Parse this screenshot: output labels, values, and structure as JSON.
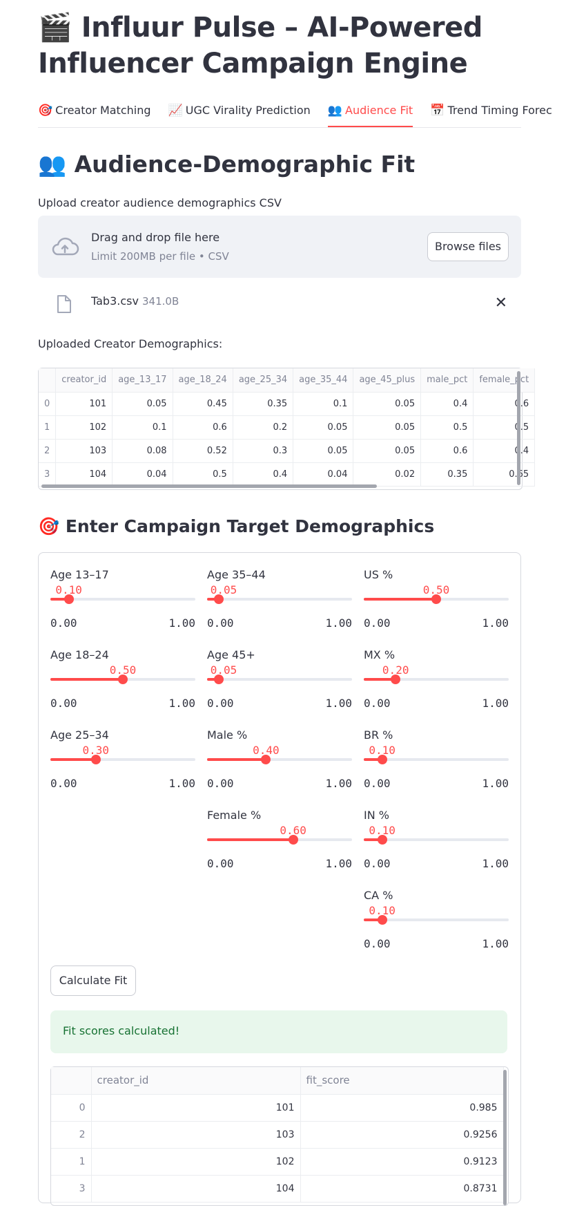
{
  "app": {
    "title": "🎬 Influur Pulse – AI-Powered Influencer Campaign Engine"
  },
  "tabs": [
    {
      "icon": "🎯",
      "label": "Creator Matching",
      "active": false
    },
    {
      "icon": "📈",
      "label": "UGC Virality Prediction",
      "active": false
    },
    {
      "icon": "👥",
      "label": "Audience Fit",
      "active": true
    },
    {
      "icon": "📅",
      "label": "Trend Timing Forec",
      "active": false
    }
  ],
  "audience": {
    "icon": "👥",
    "title": "Audience-Demographic Fit",
    "upload_label": "Upload creator audience demographics CSV",
    "dropzone": {
      "main": "Drag and drop file here",
      "sub": "Limit 200MB per file • CSV",
      "browse_label": "Browse files"
    },
    "file": {
      "name": "Tab3.csv",
      "size": "341.0B"
    },
    "uploaded_label": "Uploaded Creator Demographics:",
    "table": {
      "columns": [
        "",
        "creator_id",
        "age_13_17",
        "age_18_24",
        "age_25_34",
        "age_35_44",
        "age_45_plus",
        "male_pct",
        "female_pct"
      ],
      "rows": [
        [
          "0",
          "101",
          "0.05",
          "0.45",
          "0.35",
          "0.1",
          "0.05",
          "0.4",
          "0.6"
        ],
        [
          "1",
          "102",
          "0.1",
          "0.6",
          "0.2",
          "0.05",
          "0.05",
          "0.5",
          "0.5"
        ],
        [
          "2",
          "103",
          "0.08",
          "0.52",
          "0.3",
          "0.05",
          "0.05",
          "0.6",
          "0.4"
        ],
        [
          "3",
          "104",
          "0.04",
          "0.5",
          "0.4",
          "0.04",
          "0.02",
          "0.35",
          "0.65"
        ]
      ]
    }
  },
  "campaign": {
    "icon": "🎯",
    "title": "Enter Campaign Target Demographics",
    "sliders": {
      "age_13_17": {
        "label": "Age 13–17",
        "value": 0.1,
        "display": "0.10",
        "min": "0.00",
        "max": "1.00"
      },
      "age_18_24": {
        "label": "Age 18–24",
        "value": 0.5,
        "display": "0.50",
        "min": "0.00",
        "max": "1.00"
      },
      "age_25_34": {
        "label": "Age 25–34",
        "value": 0.3,
        "display": "0.30",
        "min": "0.00",
        "max": "1.00"
      },
      "age_35_44": {
        "label": "Age 35–44",
        "value": 0.05,
        "display": "0.05",
        "min": "0.00",
        "max": "1.00"
      },
      "age_45_plus": {
        "label": "Age 45+",
        "value": 0.05,
        "display": "0.05",
        "min": "0.00",
        "max": "1.00"
      },
      "male_pct": {
        "label": "Male %",
        "value": 0.4,
        "display": "0.40",
        "min": "0.00",
        "max": "1.00"
      },
      "female_pct": {
        "label": "Female %",
        "value": 0.6,
        "display": "0.60",
        "min": "0.00",
        "max": "1.00"
      },
      "us_pct": {
        "label": "US %",
        "value": 0.5,
        "display": "0.50",
        "min": "0.00",
        "max": "1.00"
      },
      "mx_pct": {
        "label": "MX %",
        "value": 0.2,
        "display": "0.20",
        "min": "0.00",
        "max": "1.00"
      },
      "br_pct": {
        "label": "BR %",
        "value": 0.1,
        "display": "0.10",
        "min": "0.00",
        "max": "1.00"
      },
      "in_pct": {
        "label": "IN %",
        "value": 0.1,
        "display": "0.10",
        "min": "0.00",
        "max": "1.00"
      },
      "ca_pct": {
        "label": "CA %",
        "value": 0.1,
        "display": "0.10",
        "min": "0.00",
        "max": "1.00"
      }
    },
    "calc_label": "Calculate Fit",
    "success_text": "Fit scores calculated!",
    "results": {
      "columns": [
        "",
        "creator_id",
        "fit_score"
      ],
      "rows": [
        [
          "0",
          "101",
          "0.985"
        ],
        [
          "2",
          "103",
          "0.9256"
        ],
        [
          "1",
          "102",
          "0.9123"
        ],
        [
          "3",
          "104",
          "0.8731"
        ]
      ]
    }
  },
  "colors": {
    "accent": "#ff4b4b",
    "text": "#31333f",
    "muted": "#808495",
    "success_bg": "#e8f7ec",
    "success_text": "#177233"
  }
}
